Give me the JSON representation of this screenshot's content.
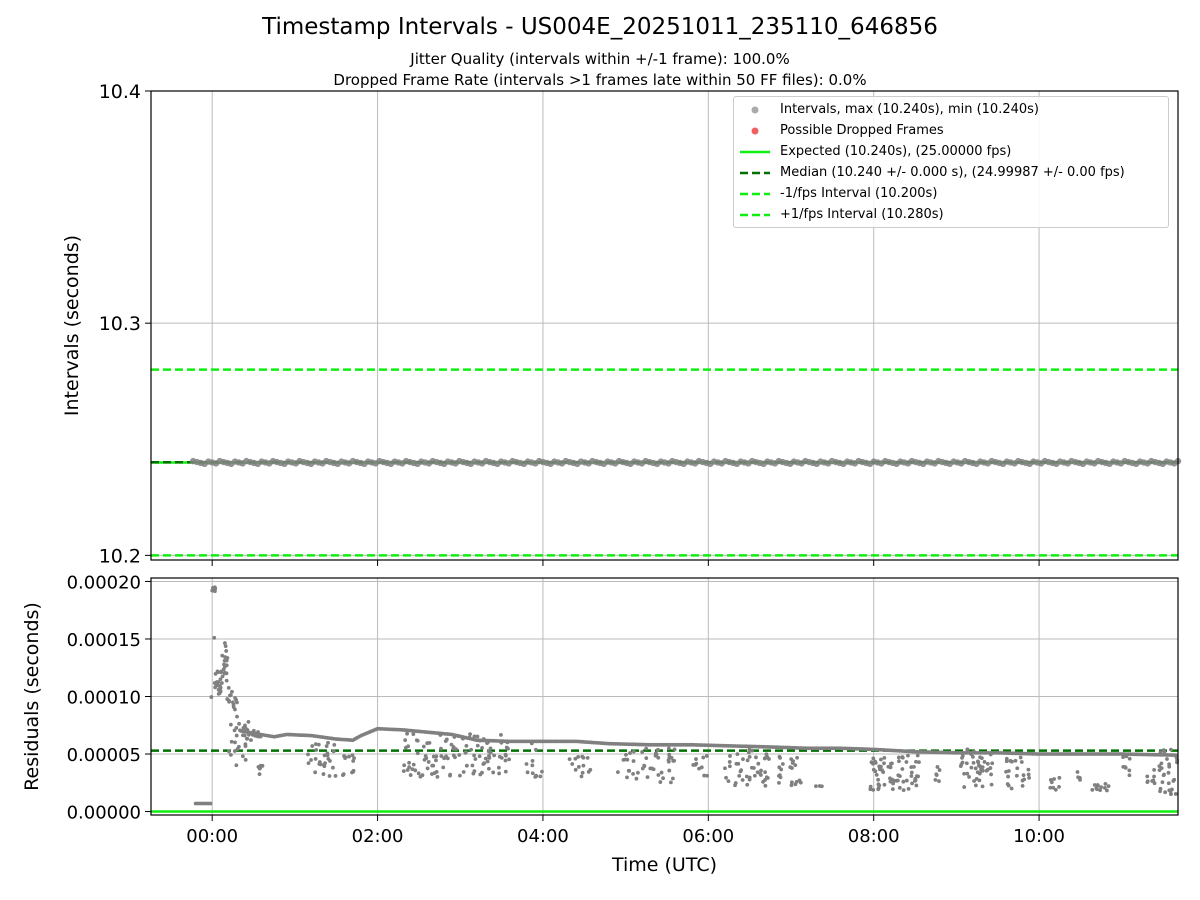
{
  "title": "Timestamp Intervals - US004E_20251011_235110_646856",
  "subtitle_lines": [
    "Jitter Quality (intervals within +/-1 frame): 100.0%",
    "Dropped Frame Rate (intervals >1 frames late within 50 FF files): 0.0%"
  ],
  "colors": {
    "scatter": "#808080",
    "legend_scatter": "#aaaaaa",
    "dropped": "#f06060",
    "expected": "#11ee11",
    "median": "#007000",
    "interval_dash": "#11ee11",
    "grid": "#bbbbbb"
  },
  "legend": [
    {
      "key": "intervals",
      "label": "Intervals, max (10.240s), min (10.240s)",
      "symbol": "circle-gray"
    },
    {
      "key": "dropped",
      "label": "Possible Dropped Frames",
      "symbol": "circle-red"
    },
    {
      "key": "expected",
      "label": "Expected (10.240s), (25.00000 fps)",
      "symbol": "line-solid-green"
    },
    {
      "key": "median",
      "label": "Median (10.240 +/- 0.000 s), (24.99987 +/- 0.00 fps)",
      "symbol": "line-dashed-darkgreen"
    },
    {
      "key": "minus",
      "label": "-1/fps Interval (10.200s)",
      "symbol": "line-dashed-green"
    },
    {
      "key": "plus",
      "label": "+1/fps Interval (10.280s)",
      "symbol": "line-dashed-green"
    }
  ],
  "chart_data": [
    {
      "type": "scatter",
      "panel": "top",
      "ylabel": "Intervals (seconds)",
      "ylim": [
        10.198,
        10.4
      ],
      "xlim_hours": [
        -0.74,
        11.68
      ],
      "yticks": [
        10.2,
        10.3,
        10.4
      ],
      "ytick_labels": [
        "10.2",
        "10.3",
        "10.4"
      ],
      "grid": true,
      "legend_position": "upper-right",
      "x_range_data": [
        -0.23,
        11.68
      ],
      "intervals_value": 10.24,
      "reference_lines": [
        {
          "name": "Expected",
          "y": 10.24,
          "style": "solid"
        },
        {
          "name": "Median",
          "y": 10.2401,
          "style": "dashed"
        },
        {
          "name": "-1/fps Interval",
          "y": 10.2,
          "style": "dashed"
        },
        {
          "name": "+1/fps Interval",
          "y": 10.28,
          "style": "dashed"
        }
      ]
    },
    {
      "type": "scatter",
      "panel": "bottom",
      "xlabel": "Time (UTC)",
      "ylabel": "Residuals (seconds)",
      "ylim": [
        -3e-06,
        0.000203
      ],
      "xlim_hours": [
        -0.74,
        11.68
      ],
      "xticks_hours": [
        0,
        2,
        4,
        6,
        8,
        10
      ],
      "xtick_labels": [
        "00:00",
        "02:00",
        "04:00",
        "06:00",
        "08:00",
        "10:00"
      ],
      "yticks": [
        0,
        5e-05,
        0.0001,
        0.00015,
        0.0002
      ],
      "ytick_labels": [
        "0.00000",
        "0.00005",
        "0.00010",
        "0.00015",
        "0.00020"
      ],
      "grid": true,
      "reference_lines": [
        {
          "name": "Expected",
          "y": 0.0,
          "style": "solid"
        },
        {
          "name": "Median",
          "y": 5.3e-05,
          "style": "dashed"
        }
      ],
      "trend": [
        [
          -0.2,
          7e-06
        ],
        [
          -0.02,
          7e-06
        ],
        [
          0.0,
          0.000192
        ],
        [
          0.05,
          0.00011
        ],
        [
          0.15,
          0.00012
        ],
        [
          0.25,
          9.5e-05
        ],
        [
          0.35,
          7e-05
        ],
        [
          0.5,
          6.8e-05
        ],
        [
          0.75,
          6.5e-05
        ],
        [
          0.9,
          6.7e-05
        ],
        [
          1.2,
          6.6e-05
        ],
        [
          1.5,
          6.3e-05
        ],
        [
          1.7,
          6.2e-05
        ],
        [
          1.8,
          6.6e-05
        ],
        [
          2.0,
          7.2e-05
        ],
        [
          2.3,
          7.1e-05
        ],
        [
          2.6,
          6.9e-05
        ],
        [
          2.9,
          6.7e-05
        ],
        [
          3.2,
          6.2e-05
        ],
        [
          3.6,
          6.1e-05
        ],
        [
          4.0,
          6.1e-05
        ],
        [
          4.4,
          6.1e-05
        ],
        [
          4.8,
          5.9e-05
        ],
        [
          5.3,
          5.8e-05
        ],
        [
          5.8,
          5.8e-05
        ],
        [
          6.3,
          5.7e-05
        ],
        [
          6.8,
          5.6e-05
        ],
        [
          7.2,
          5.5e-05
        ],
        [
          7.6,
          5.5e-05
        ],
        [
          8.0,
          5.4e-05
        ],
        [
          8.5,
          5.2e-05
        ],
        [
          9.0,
          5.1e-05
        ],
        [
          9.5,
          5.1e-05
        ],
        [
          10.0,
          5e-05
        ],
        [
          10.5,
          5e-05
        ],
        [
          11.0,
          5e-05
        ],
        [
          11.68,
          4.9e-05
        ]
      ],
      "scatter_clusters": [
        {
          "x": [
            0.0,
            0.05
          ],
          "y": [
            0.00019,
            0.000195
          ],
          "n": 5
        },
        {
          "x": [
            0.02,
            0.12
          ],
          "y": [
            0.0001,
            0.000125
          ],
          "n": 20
        },
        {
          "x": [
            0.12,
            0.2
          ],
          "y": [
            0.00012,
            0.000148
          ],
          "n": 14
        },
        {
          "x": [
            0.18,
            0.3
          ],
          "y": [
            8.5e-05,
            0.000105
          ],
          "n": 10
        },
        {
          "x": [
            0.2,
            0.5
          ],
          "y": [
            4e-05,
            7.8e-05
          ],
          "n": 25
        },
        {
          "x": [
            0.4,
            0.6
          ],
          "y": [
            6.2e-05,
            7.2e-05
          ],
          "n": 12
        },
        {
          "x": [
            0.55,
            0.65
          ],
          "y": [
            3e-05,
            4e-05
          ],
          "n": 6
        },
        {
          "x": [
            1.15,
            1.5
          ],
          "y": [
            3e-05,
            6e-05
          ],
          "n": 28
        },
        {
          "x": [
            1.55,
            1.75
          ],
          "y": [
            3e-05,
            5e-05
          ],
          "n": 12
        },
        {
          "x": [
            2.3,
            3.6
          ],
          "y": [
            3e-05,
            6.8e-05
          ],
          "n": 110
        },
        {
          "x": [
            3.8,
            4.0
          ],
          "y": [
            3e-05,
            6e-05
          ],
          "n": 12
        },
        {
          "x": [
            4.3,
            4.6
          ],
          "y": [
            3e-05,
            5e-05
          ],
          "n": 14
        },
        {
          "x": [
            4.9,
            5.6
          ],
          "y": [
            2.5e-05,
            5.5e-05
          ],
          "n": 45
        },
        {
          "x": [
            5.8,
            6.0
          ],
          "y": [
            3e-05,
            5e-05
          ],
          "n": 10
        },
        {
          "x": [
            6.2,
            6.75
          ],
          "y": [
            2.2e-05,
            5.5e-05
          ],
          "n": 45
        },
        {
          "x": [
            6.85,
            7.15
          ],
          "y": [
            2.2e-05,
            5e-05
          ],
          "n": 22
        },
        {
          "x": [
            7.3,
            7.4
          ],
          "y": [
            2.2e-05,
            2.3e-05
          ],
          "n": 3
        },
        {
          "x": [
            7.95,
            8.55
          ],
          "y": [
            1.8e-05,
            5e-05
          ],
          "n": 65
        },
        {
          "x": [
            8.7,
            8.8
          ],
          "y": [
            2e-05,
            4e-05
          ],
          "n": 6
        },
        {
          "x": [
            9.05,
            9.45
          ],
          "y": [
            2e-05,
            5.5e-05
          ],
          "n": 45
        },
        {
          "x": [
            9.6,
            9.9
          ],
          "y": [
            2e-05,
            4.8e-05
          ],
          "n": 22
        },
        {
          "x": [
            10.1,
            10.25
          ],
          "y": [
            1.8e-05,
            3e-05
          ],
          "n": 8
        },
        {
          "x": [
            10.45,
            10.5
          ],
          "y": [
            1.8e-05,
            4e-05
          ],
          "n": 4
        },
        {
          "x": [
            10.6,
            10.85
          ],
          "y": [
            1.8e-05,
            2.5e-05
          ],
          "n": 12
        },
        {
          "x": [
            11.0,
            11.1
          ],
          "y": [
            3e-05,
            5e-05
          ],
          "n": 8
        },
        {
          "x": [
            11.3,
            11.4
          ],
          "y": [
            2e-05,
            4e-05
          ],
          "n": 8
        },
        {
          "x": [
            11.45,
            11.68
          ],
          "y": [
            1.5e-05,
            5.5e-05
          ],
          "n": 30
        }
      ]
    }
  ]
}
